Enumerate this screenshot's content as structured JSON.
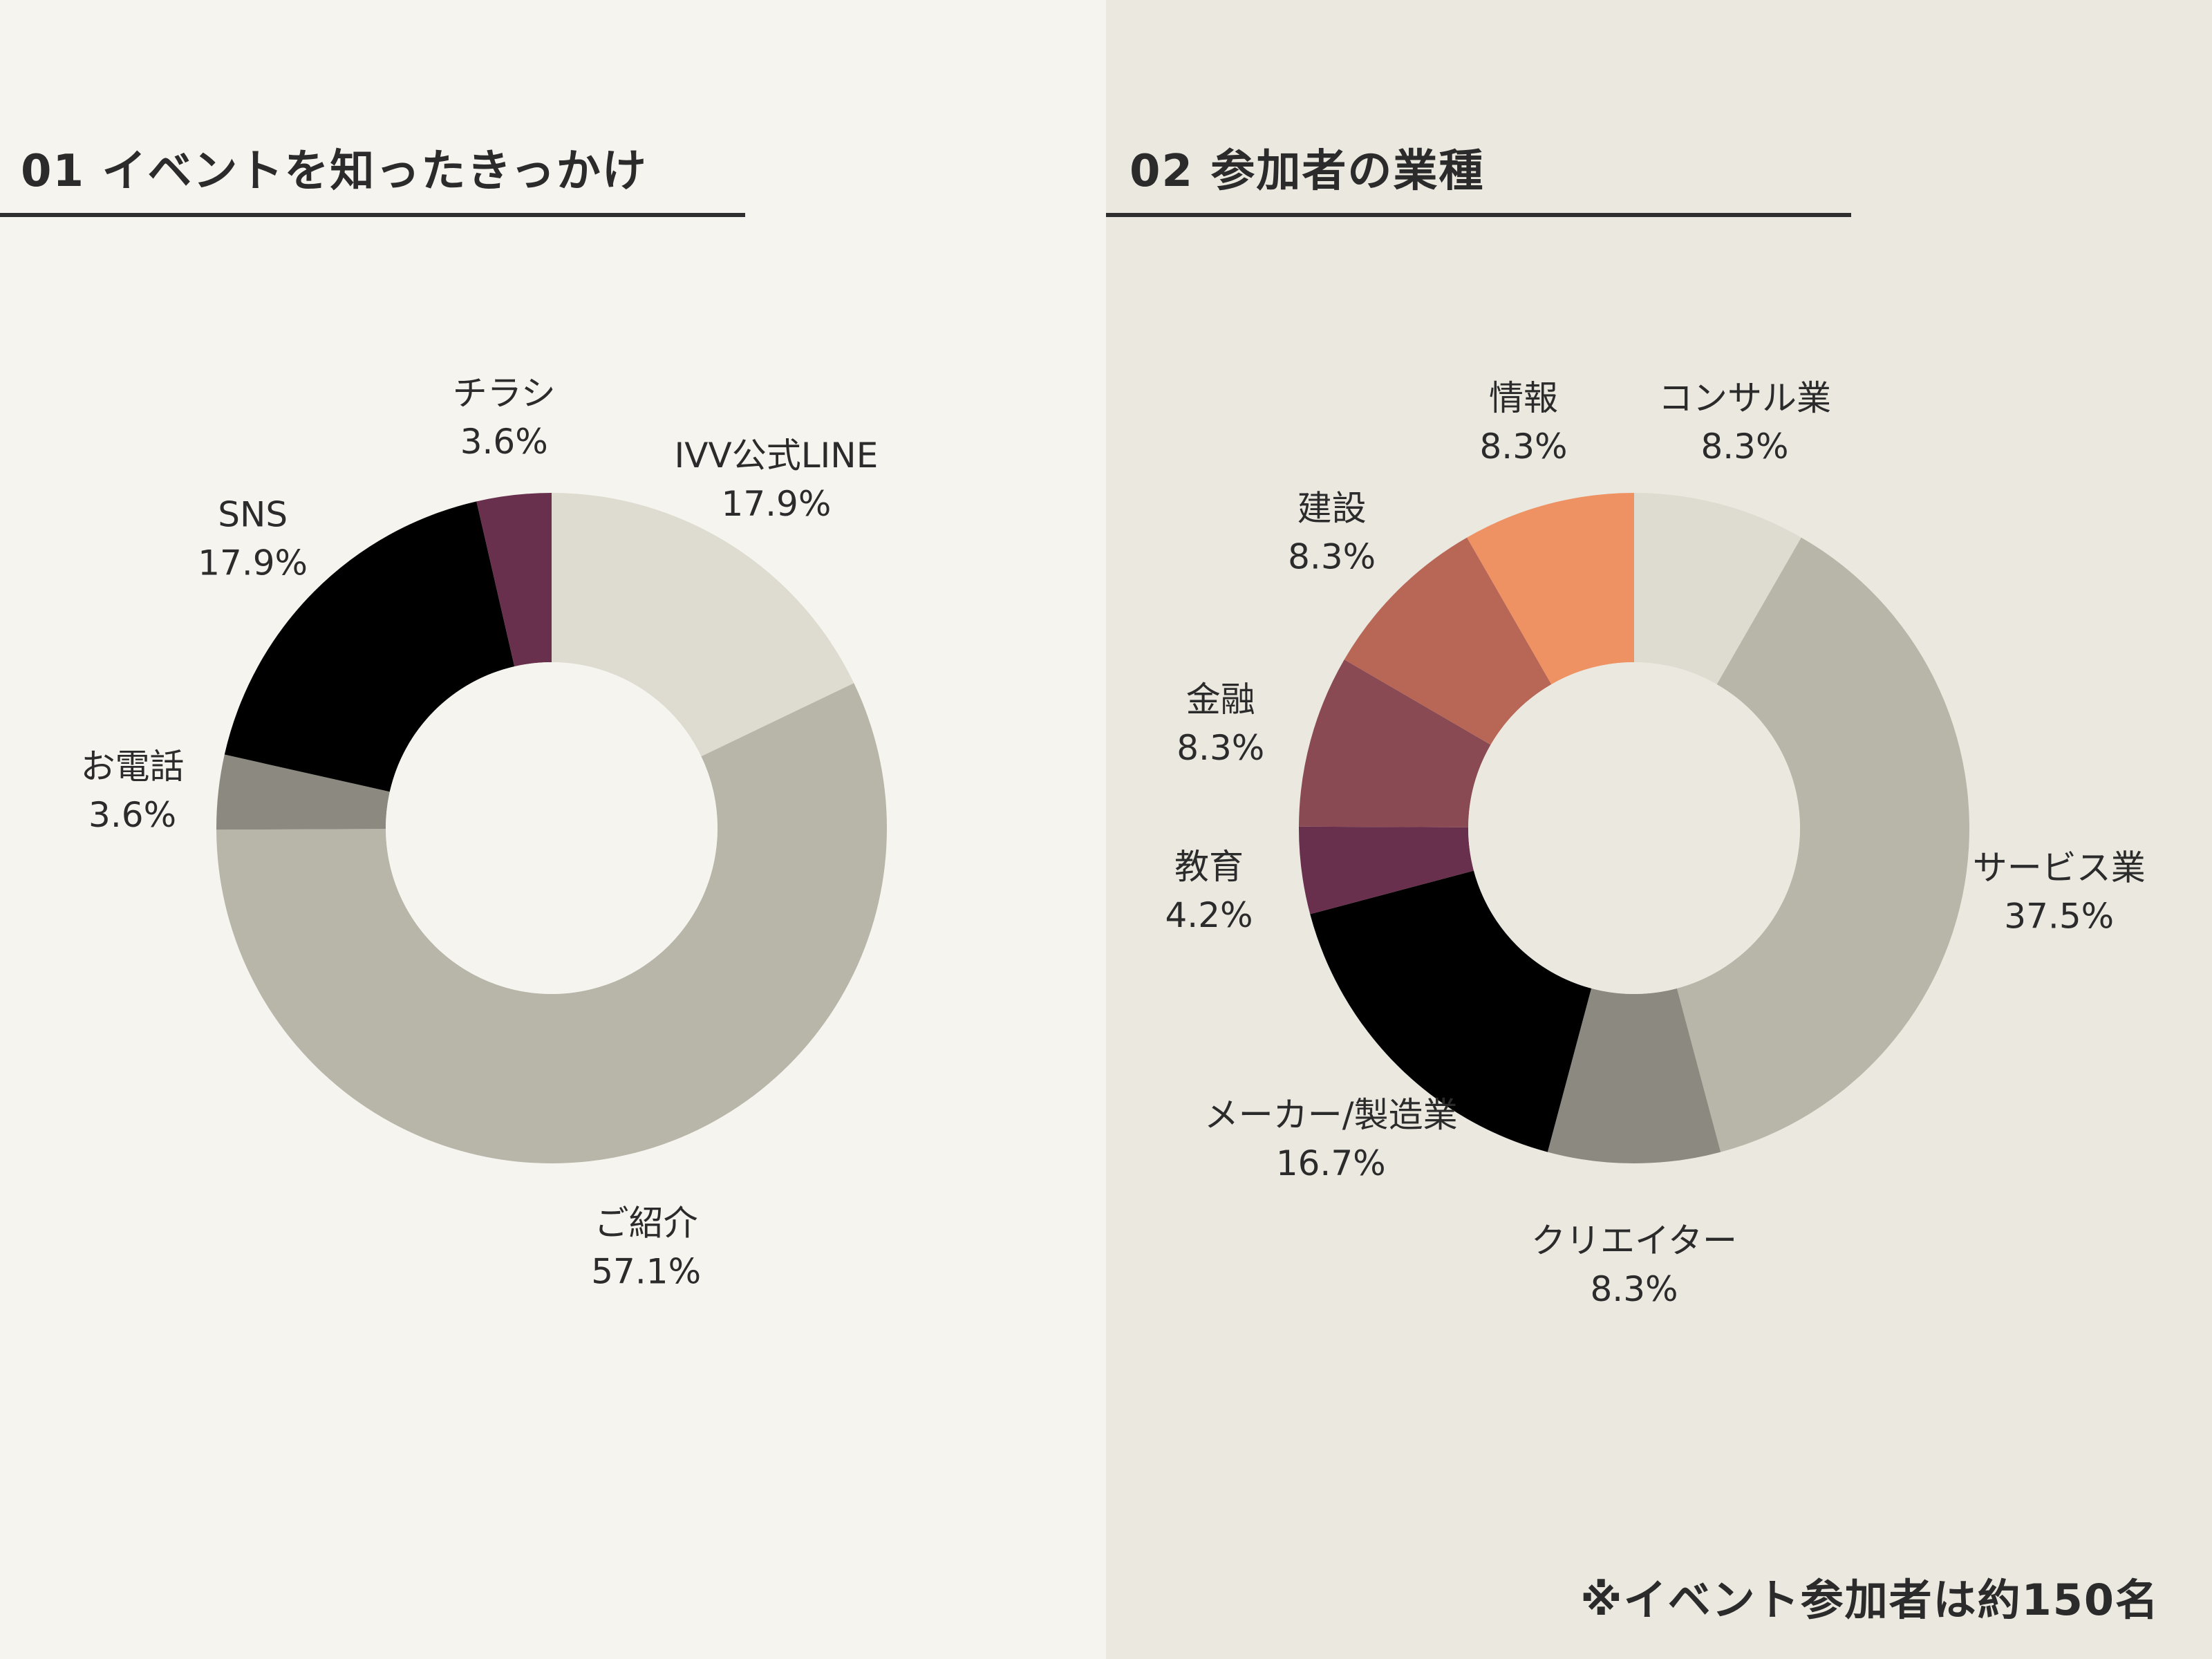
{
  "chart_data": [
    {
      "type": "pie",
      "title": "01 イベントを知ったきっかけ",
      "donut": true,
      "start": "top, clockwise",
      "slices": [
        {
          "label": "IVV公式LINE",
          "value": 17.9,
          "pct": "17.9%",
          "color": "#dedbd0"
        },
        {
          "label": "ご紹介",
          "value": 57.1,
          "pct": "57.1%",
          "color": "#b8b5a9"
        },
        {
          "label": "お電話",
          "value": 3.6,
          "pct": "3.6%",
          "color": "#8c8980"
        },
        {
          "label": "SNS",
          "value": 17.9,
          "pct": "17.9%",
          "color": "#000000"
        },
        {
          "label": "チラシ",
          "value": 3.6,
          "pct": "3.6%",
          "color": "#69304d"
        }
      ]
    },
    {
      "type": "pie",
      "title": "02 参加者の業種",
      "donut": true,
      "start": "top, clockwise",
      "slices": [
        {
          "label": "コンサル業",
          "value": 8.3,
          "pct": "8.3%",
          "color": "#dedbd0"
        },
        {
          "label": "サービス業",
          "value": 37.5,
          "pct": "37.5%",
          "color": "#b8b5a9"
        },
        {
          "label": "クリエイター",
          "value": 8.3,
          "pct": "8.3%",
          "color": "#8c8980"
        },
        {
          "label": "メーカー/製造業",
          "value": 16.7,
          "pct": "16.7%",
          "color": "#000000"
        },
        {
          "label": "教育",
          "value": 4.2,
          "pct": "4.2%",
          "color": "#69304d"
        },
        {
          "label": "金融",
          "value": 8.3,
          "pct": "8.3%",
          "color": "#894a53"
        },
        {
          "label": "建設",
          "value": 8.3,
          "pct": "8.3%",
          "color": "#b86756"
        },
        {
          "label": "情報",
          "value": 8.3,
          "pct": "8.3%",
          "color": "#ee9263"
        }
      ]
    }
  ],
  "footnote": "※イベント参加者は約150名"
}
